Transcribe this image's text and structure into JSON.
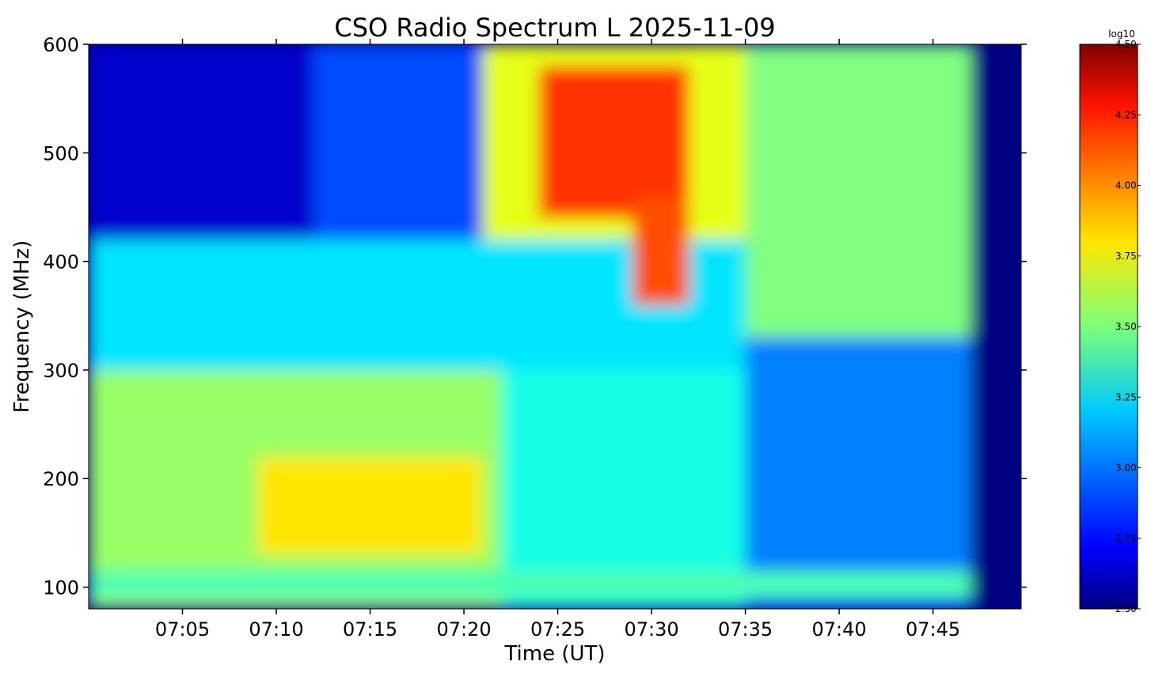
{
  "chart_data": {
    "type": "heatmap",
    "title": "CSO Radio Spectrum L 2025-11-09",
    "xlabel": "Time (UT)",
    "ylabel": "Frequency (MHz)",
    "xlim_minutes": [
      420.0,
      469.7
    ],
    "ylim": [
      80,
      600
    ],
    "x_ticks": [
      {
        "label": "07:05",
        "value": 425
      },
      {
        "label": "07:10",
        "value": 430
      },
      {
        "label": "07:15",
        "value": 435
      },
      {
        "label": "07:20",
        "value": 440
      },
      {
        "label": "07:25",
        "value": 445
      },
      {
        "label": "07:30",
        "value": 450
      },
      {
        "label": "07:35",
        "value": 455
      },
      {
        "label": "07:40",
        "value": 460
      },
      {
        "label": "07:45",
        "value": 465
      }
    ],
    "y_ticks": [
      {
        "label": "100",
        "value": 100
      },
      {
        "label": "200",
        "value": 200
      },
      {
        "label": "300",
        "value": 300
      },
      {
        "label": "400",
        "value": 400
      },
      {
        "label": "500",
        "value": 500
      },
      {
        "label": "600",
        "value": 600
      }
    ],
    "colormap": "jet",
    "colorbar": {
      "unit_label": "log10",
      "range": [
        2.5,
        4.5
      ],
      "ticks": [
        "2.50",
        "2.75",
        "3.00",
        "3.25",
        "3.50",
        "3.75",
        "4.00",
        "4.25",
        "4.50"
      ]
    },
    "intensity_regions": [
      {
        "t_start": 420.0,
        "t_end": 469.7,
        "f_low": 80,
        "f_high": 600,
        "log10": 2.9
      },
      {
        "t_start": 420.0,
        "t_end": 442.0,
        "f_low": 80,
        "f_high": 300,
        "log10": 3.55
      },
      {
        "t_start": 420.0,
        "t_end": 455.0,
        "f_low": 300,
        "f_high": 420,
        "log10": 3.2
      },
      {
        "t_start": 420.0,
        "t_end": 432.0,
        "f_low": 420,
        "f_high": 600,
        "log10": 2.65
      },
      {
        "t_start": 429.0,
        "t_end": 441.0,
        "f_low": 130,
        "f_high": 220,
        "log10": 3.8
      },
      {
        "t_start": 442.0,
        "t_end": 455.0,
        "f_low": 80,
        "f_high": 300,
        "log10": 3.3
      },
      {
        "t_start": 441.0,
        "t_end": 455.0,
        "f_low": 420,
        "f_high": 600,
        "log10": 3.7
      },
      {
        "t_start": 444.0,
        "t_end": 452.0,
        "f_low": 440,
        "f_high": 580,
        "log10": 4.15
      },
      {
        "t_start": 449.0,
        "t_end": 452.0,
        "f_low": 360,
        "f_high": 460,
        "log10": 4.1
      },
      {
        "t_start": 455.0,
        "t_end": 467.0,
        "f_low": 330,
        "f_high": 600,
        "log10": 3.5
      },
      {
        "t_start": 455.0,
        "t_end": 467.0,
        "f_low": 80,
        "f_high": 330,
        "log10": 3.0
      },
      {
        "t_start": 467.0,
        "t_end": 469.7,
        "f_low": 80,
        "f_high": 600,
        "log10": 2.5
      },
      {
        "t_start": 420.0,
        "t_end": 467.0,
        "f_low": 90,
        "f_high": 115,
        "log10": 3.4
      }
    ]
  },
  "colors": {
    "background": "#ffffff",
    "low": "#00008b",
    "high": "#7f0000"
  }
}
